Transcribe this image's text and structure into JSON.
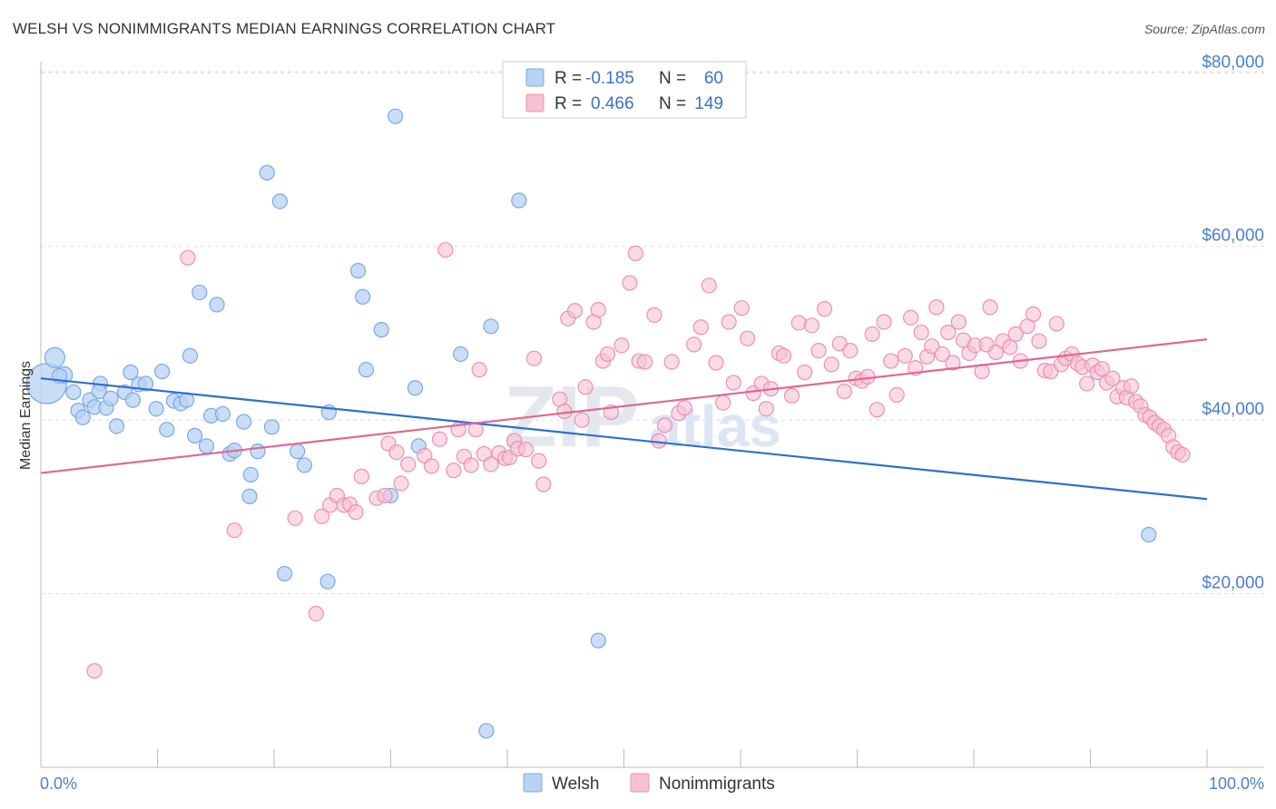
{
  "title": "WELSH VS NONIMMIGRANTS MEDIAN EARNINGS CORRELATION CHART",
  "source": "Source: ZipAtlas.com",
  "watermark": {
    "zip": "ZIP",
    "atlas": "atlas"
  },
  "colors": {
    "welsh_fill": "#b8d2f3",
    "welsh_stroke": "#7aa8e6",
    "welsh_line": "#2e6fd0",
    "non_fill": "#f6c2d2",
    "non_stroke": "#ec90ae",
    "non_line": "#e06890",
    "tick_text": "#4a7fd0",
    "grid": "#dddddd"
  },
  "legend": {
    "rows": [
      {
        "r_label": "R =",
        "r_value": "-0.185",
        "n_label": "N =",
        "n_value": "60"
      },
      {
        "r_label": "R =",
        "r_value": "0.466",
        "n_label": "N =",
        "n_value": "149"
      }
    ]
  },
  "chart_data": {
    "type": "scatter",
    "title": "WELSH VS NONIMMIGRANTS MEDIAN EARNINGS CORRELATION CHART",
    "xlabel": "",
    "ylabel": "Median Earnings",
    "xlim": [
      0,
      100
    ],
    "ylim": [
      0,
      83000
    ],
    "x_tick_labels": [
      "0.0%",
      "100.0%"
    ],
    "y_ticks": [
      20000,
      40000,
      60000,
      80000
    ],
    "y_tick_labels": [
      "$20,000",
      "$40,000",
      "$60,000",
      "$80,000"
    ],
    "grid": true,
    "legend_position": "bottom-center",
    "series": [
      {
        "name": "Welsh",
        "R": -0.185,
        "N": 60,
        "trend": [
          [
            0,
            44800
          ],
          [
            100,
            30900
          ]
        ],
        "points": [
          [
            0.5,
            44200,
            22
          ],
          [
            1.2,
            47200,
            11
          ],
          [
            2.0,
            45200,
            9
          ],
          [
            1.6,
            45100,
            8
          ],
          [
            2.8,
            43200,
            8
          ],
          [
            3.2,
            41100,
            8
          ],
          [
            3.6,
            40300,
            8
          ],
          [
            4.2,
            42300,
            8
          ],
          [
            4.6,
            41500,
            8
          ],
          [
            5.1,
            44200,
            8
          ],
          [
            5.6,
            41400,
            8
          ],
          [
            5.0,
            43300,
            8
          ],
          [
            6.0,
            42500,
            8
          ],
          [
            6.5,
            39300,
            8
          ],
          [
            7.2,
            43200,
            8
          ],
          [
            7.9,
            42300,
            8
          ],
          [
            7.7,
            45500,
            8
          ],
          [
            8.4,
            44100,
            8
          ],
          [
            9.0,
            44200,
            8
          ],
          [
            9.9,
            41300,
            8
          ],
          [
            10.4,
            45600,
            8
          ],
          [
            10.8,
            38900,
            8
          ],
          [
            11.4,
            42200,
            8
          ],
          [
            12.0,
            41900,
            8
          ],
          [
            12.5,
            42300,
            8
          ],
          [
            12.8,
            47400,
            8
          ],
          [
            13.2,
            38200,
            8
          ],
          [
            13.6,
            54700,
            8
          ],
          [
            14.2,
            37000,
            8
          ],
          [
            14.6,
            40500,
            8
          ],
          [
            15.1,
            53300,
            8
          ],
          [
            15.6,
            40700,
            8
          ],
          [
            16.2,
            36100,
            8
          ],
          [
            16.6,
            36500,
            8
          ],
          [
            17.4,
            39800,
            8
          ],
          [
            17.9,
            31200,
            8
          ],
          [
            18.0,
            33700,
            8
          ],
          [
            18.6,
            36400,
            8
          ],
          [
            19.4,
            68500,
            8
          ],
          [
            19.8,
            39200,
            8
          ],
          [
            20.5,
            65200,
            8
          ],
          [
            20.9,
            22300,
            8
          ],
          [
            22.0,
            36400,
            8
          ],
          [
            22.6,
            34800,
            8
          ],
          [
            24.7,
            40900,
            8
          ],
          [
            24.6,
            21400,
            8
          ],
          [
            27.2,
            57200,
            8
          ],
          [
            27.6,
            54200,
            8
          ],
          [
            27.9,
            45800,
            8
          ],
          [
            29.2,
            50400,
            8
          ],
          [
            30.0,
            31300,
            8
          ],
          [
            30.4,
            75000,
            8
          ],
          [
            32.1,
            43700,
            8
          ],
          [
            32.4,
            37000,
            8
          ],
          [
            36.0,
            47600,
            8
          ],
          [
            38.6,
            50800,
            8
          ],
          [
            38.2,
            4200,
            8
          ],
          [
            41.0,
            65300,
            8
          ],
          [
            47.8,
            14600,
            8
          ],
          [
            95.0,
            26800,
            8
          ]
        ]
      },
      {
        "name": "Nonimmigrants",
        "R": 0.466,
        "N": 149,
        "trend": [
          [
            0,
            33900
          ],
          [
            100,
            49300
          ]
        ],
        "points": [
          [
            4.6,
            11100
          ],
          [
            12.6,
            58700
          ],
          [
            16.6,
            27300
          ],
          [
            21.8,
            28700
          ],
          [
            23.6,
            17700
          ],
          [
            24.1,
            28900
          ],
          [
            24.8,
            30200
          ],
          [
            25.4,
            31300
          ],
          [
            26.0,
            30200
          ],
          [
            26.5,
            30300
          ],
          [
            27.0,
            29400
          ],
          [
            27.5,
            33500
          ],
          [
            28.8,
            31000
          ],
          [
            29.5,
            31300
          ],
          [
            29.8,
            37300
          ],
          [
            30.5,
            36300
          ],
          [
            30.9,
            32700
          ],
          [
            31.5,
            34900
          ],
          [
            32.9,
            35900
          ],
          [
            33.5,
            34700
          ],
          [
            34.2,
            37800
          ],
          [
            34.7,
            59600
          ],
          [
            35.4,
            34200
          ],
          [
            35.8,
            38900
          ],
          [
            36.3,
            35800
          ],
          [
            36.9,
            34800
          ],
          [
            37.3,
            38900
          ],
          [
            37.6,
            45800
          ],
          [
            38.0,
            36100
          ],
          [
            38.6,
            34900
          ],
          [
            39.3,
            36200
          ],
          [
            39.8,
            35600
          ],
          [
            40.2,
            35700
          ],
          [
            40.6,
            37600
          ],
          [
            40.9,
            36700
          ],
          [
            41.6,
            36600
          ],
          [
            42.3,
            47100
          ],
          [
            42.7,
            35300
          ],
          [
            43.1,
            32600
          ],
          [
            44.5,
            42400
          ],
          [
            44.9,
            41000
          ],
          [
            45.2,
            51700
          ],
          [
            45.8,
            52600
          ],
          [
            46.4,
            40000
          ],
          [
            46.7,
            43800
          ],
          [
            47.4,
            51300
          ],
          [
            47.8,
            52700
          ],
          [
            48.2,
            46800
          ],
          [
            48.6,
            47600
          ],
          [
            48.9,
            40900
          ],
          [
            49.8,
            48600
          ],
          [
            50.5,
            55800
          ],
          [
            51.0,
            59200
          ],
          [
            51.3,
            46800
          ],
          [
            51.8,
            46700
          ],
          [
            52.6,
            52100
          ],
          [
            53.0,
            37600
          ],
          [
            53.5,
            39400
          ],
          [
            54.1,
            46700
          ],
          [
            54.7,
            40800
          ],
          [
            55.2,
            41400
          ],
          [
            56.0,
            48700
          ],
          [
            56.6,
            50700
          ],
          [
            57.3,
            55500
          ],
          [
            57.9,
            46600
          ],
          [
            58.5,
            42000
          ],
          [
            59.0,
            51300
          ],
          [
            59.4,
            44300
          ],
          [
            60.1,
            52900
          ],
          [
            60.6,
            49400
          ],
          [
            61.1,
            43100
          ],
          [
            61.8,
            44200
          ],
          [
            62.2,
            41300
          ],
          [
            62.6,
            43600
          ],
          [
            63.3,
            47700
          ],
          [
            63.7,
            47400
          ],
          [
            64.4,
            42800
          ],
          [
            65.0,
            51200
          ],
          [
            65.5,
            45500
          ],
          [
            66.1,
            50900
          ],
          [
            66.7,
            48000
          ],
          [
            67.2,
            52800
          ],
          [
            67.8,
            46400
          ],
          [
            68.5,
            48800
          ],
          [
            68.9,
            43300
          ],
          [
            69.4,
            48000
          ],
          [
            69.9,
            44800
          ],
          [
            70.4,
            44500
          ],
          [
            70.9,
            45000
          ],
          [
            71.3,
            49900
          ],
          [
            71.7,
            41200
          ],
          [
            72.3,
            51300
          ],
          [
            72.9,
            46800
          ],
          [
            73.4,
            42900
          ],
          [
            74.1,
            47400
          ],
          [
            74.6,
            51800
          ],
          [
            75.0,
            46000
          ],
          [
            75.5,
            50100
          ],
          [
            76.0,
            47300
          ],
          [
            76.4,
            48500
          ],
          [
            76.8,
            53000
          ],
          [
            77.3,
            47600
          ],
          [
            77.8,
            50100
          ],
          [
            78.2,
            46600
          ],
          [
            78.7,
            51300
          ],
          [
            79.1,
            49200
          ],
          [
            79.6,
            47700
          ],
          [
            80.1,
            48600
          ],
          [
            80.7,
            45600
          ],
          [
            81.1,
            48700
          ],
          [
            81.4,
            53000
          ],
          [
            81.9,
            47800
          ],
          [
            82.5,
            49100
          ],
          [
            83.1,
            48400
          ],
          [
            83.6,
            49900
          ],
          [
            84.0,
            46800
          ],
          [
            84.6,
            50800
          ],
          [
            85.1,
            52200
          ],
          [
            85.6,
            49100
          ],
          [
            86.1,
            45700
          ],
          [
            86.6,
            45600
          ],
          [
            87.1,
            51100
          ],
          [
            87.5,
            46400
          ],
          [
            87.9,
            47100
          ],
          [
            88.4,
            47600
          ],
          [
            88.9,
            46500
          ],
          [
            89.3,
            46100
          ],
          [
            89.7,
            44200
          ],
          [
            90.2,
            46300
          ],
          [
            90.6,
            45500
          ],
          [
            91.0,
            45900
          ],
          [
            91.4,
            44300
          ],
          [
            91.9,
            44800
          ],
          [
            92.3,
            42700
          ],
          [
            92.8,
            43700
          ],
          [
            93.1,
            42600
          ],
          [
            93.5,
            43900
          ],
          [
            93.9,
            42100
          ],
          [
            94.3,
            41600
          ],
          [
            94.7,
            40600
          ],
          [
            95.1,
            40300
          ],
          [
            95.5,
            39700
          ],
          [
            95.9,
            39300
          ],
          [
            96.3,
            38900
          ],
          [
            96.7,
            38200
          ],
          [
            97.1,
            36900
          ],
          [
            97.5,
            36300
          ],
          [
            97.9,
            36000
          ]
        ]
      }
    ]
  }
}
